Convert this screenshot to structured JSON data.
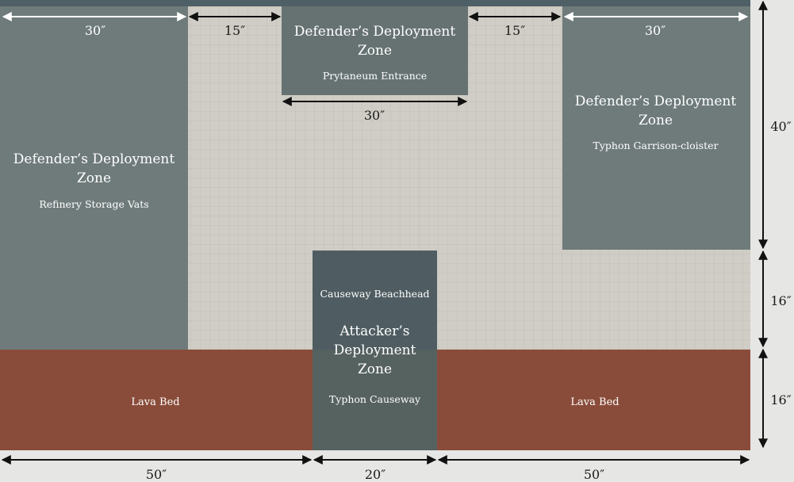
{
  "zones": {
    "left": {
      "title": "Defender’s Deployment Zone",
      "sub": "Refinery Storage Vats"
    },
    "top": {
      "title": "Defender’s Deployment Zone",
      "sub": "Prytaneum Entrance"
    },
    "right": {
      "title": "Defender’s Deployment Zone",
      "sub": "Typhon Garrison-cloister"
    },
    "attacker": {
      "title": "Attacker’s Deployment Zone",
      "top_label": "Causeway Beachhead",
      "sub": "Typhon Causeway"
    },
    "lava_left": {
      "label": "Lava Bed"
    },
    "lava_right": {
      "label": "Lava Bed"
    }
  },
  "dims": {
    "top_left": "30″",
    "top_gap_left": "15″",
    "top_gap_right": "15″",
    "top_right": "30″",
    "top_center": "30″",
    "right_upper": "40″",
    "right_mid": "16″",
    "right_lower": "16″",
    "bottom_left": "50″",
    "bottom_mid": "20″",
    "bottom_right": "50″"
  },
  "colors": {
    "defender_zone": "#6f7b7b",
    "attacker_zone": "#4f5d62",
    "lava": "#8a4c3a",
    "board": "#cfcdc5",
    "border": "#4f5f66"
  }
}
